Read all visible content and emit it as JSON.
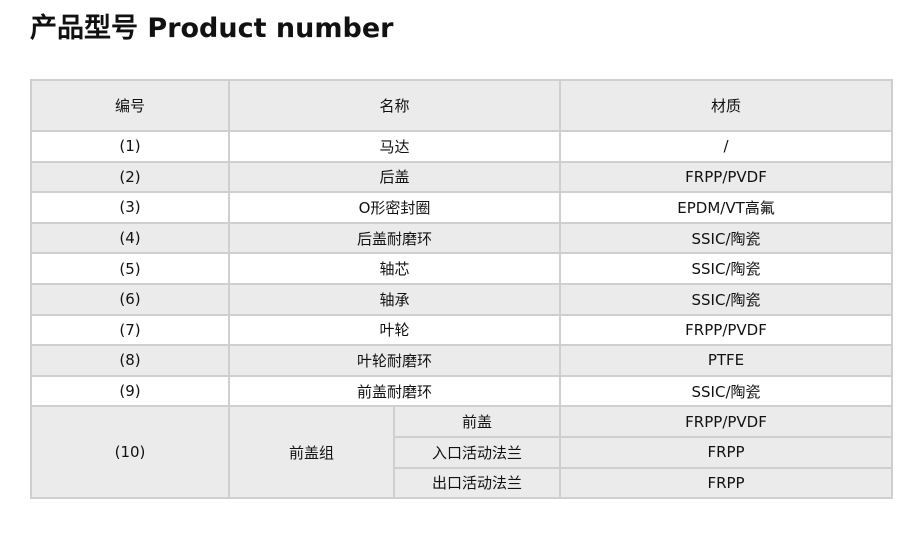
{
  "title": "产品型号 Product number",
  "table": {
    "headers": [
      "编号",
      "名称",
      "材质"
    ],
    "rows": [
      {
        "no": "(1)",
        "name": "马达",
        "material": "/"
      },
      {
        "no": "(2)",
        "name": "后盖",
        "material": "FRPP/PVDF"
      },
      {
        "no": "(3)",
        "name": "O形密封圈",
        "material": "EPDM/VT高氟"
      },
      {
        "no": "(4)",
        "name": "后盖耐磨环",
        "material": "SSIC/陶瓷"
      },
      {
        "no": "(5)",
        "name": "轴芯",
        "material": "SSIC/陶瓷"
      },
      {
        "no": "(6)",
        "name": "轴承",
        "material": "SSIC/陶瓷"
      },
      {
        "no": "(7)",
        "name": "叶轮",
        "material": "FRPP/PVDF"
      },
      {
        "no": "(8)",
        "name": "叶轮耐磨环",
        "material": "PTFE"
      },
      {
        "no": "(9)",
        "name": "前盖耐磨环",
        "material": "SSIC/陶瓷"
      }
    ],
    "group": {
      "no": "(10)",
      "name": "前盖组",
      "parts": [
        {
          "name": "前盖",
          "material": "FRPP/PVDF"
        },
        {
          "name": "入口活动法兰",
          "material": "FRPP"
        },
        {
          "name": "出口活动法兰",
          "material": "FRPP"
        }
      ]
    }
  }
}
